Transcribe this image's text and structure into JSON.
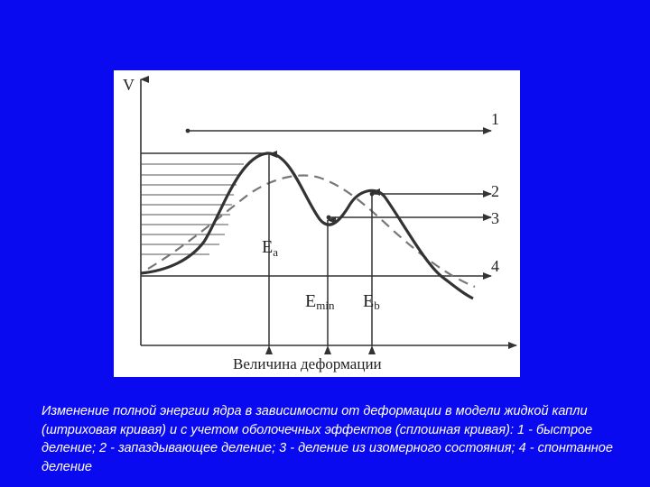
{
  "diagram": {
    "y_axis_label": "V",
    "x_axis_label": "Величина деформации",
    "line_labels": [
      "1",
      "2",
      "3",
      "4"
    ],
    "energy_labels": {
      "ea": {
        "main": "E",
        "sub": "a"
      },
      "emin": {
        "main": "E",
        "sub": "min"
      },
      "eb": {
        "main": "E",
        "sub": "b"
      }
    },
    "curves": {
      "solid": "оболочечные эффекты",
      "dashed": "модель жидкой капли"
    },
    "colors": {
      "background": "#0a0af0",
      "panel": "#ffffff",
      "ink": "#333333"
    }
  },
  "caption": "Изменение полной энергии ядра в зависимости от деформации в модели жидкой капли (штриховая кривая) и с учетом оболочечных эффектов (сплошная кривая): 1 - быстрое деление; 2 - запаздывающее деление; 3 - деление из изомерного состояния; 4 - спонтанное деление"
}
